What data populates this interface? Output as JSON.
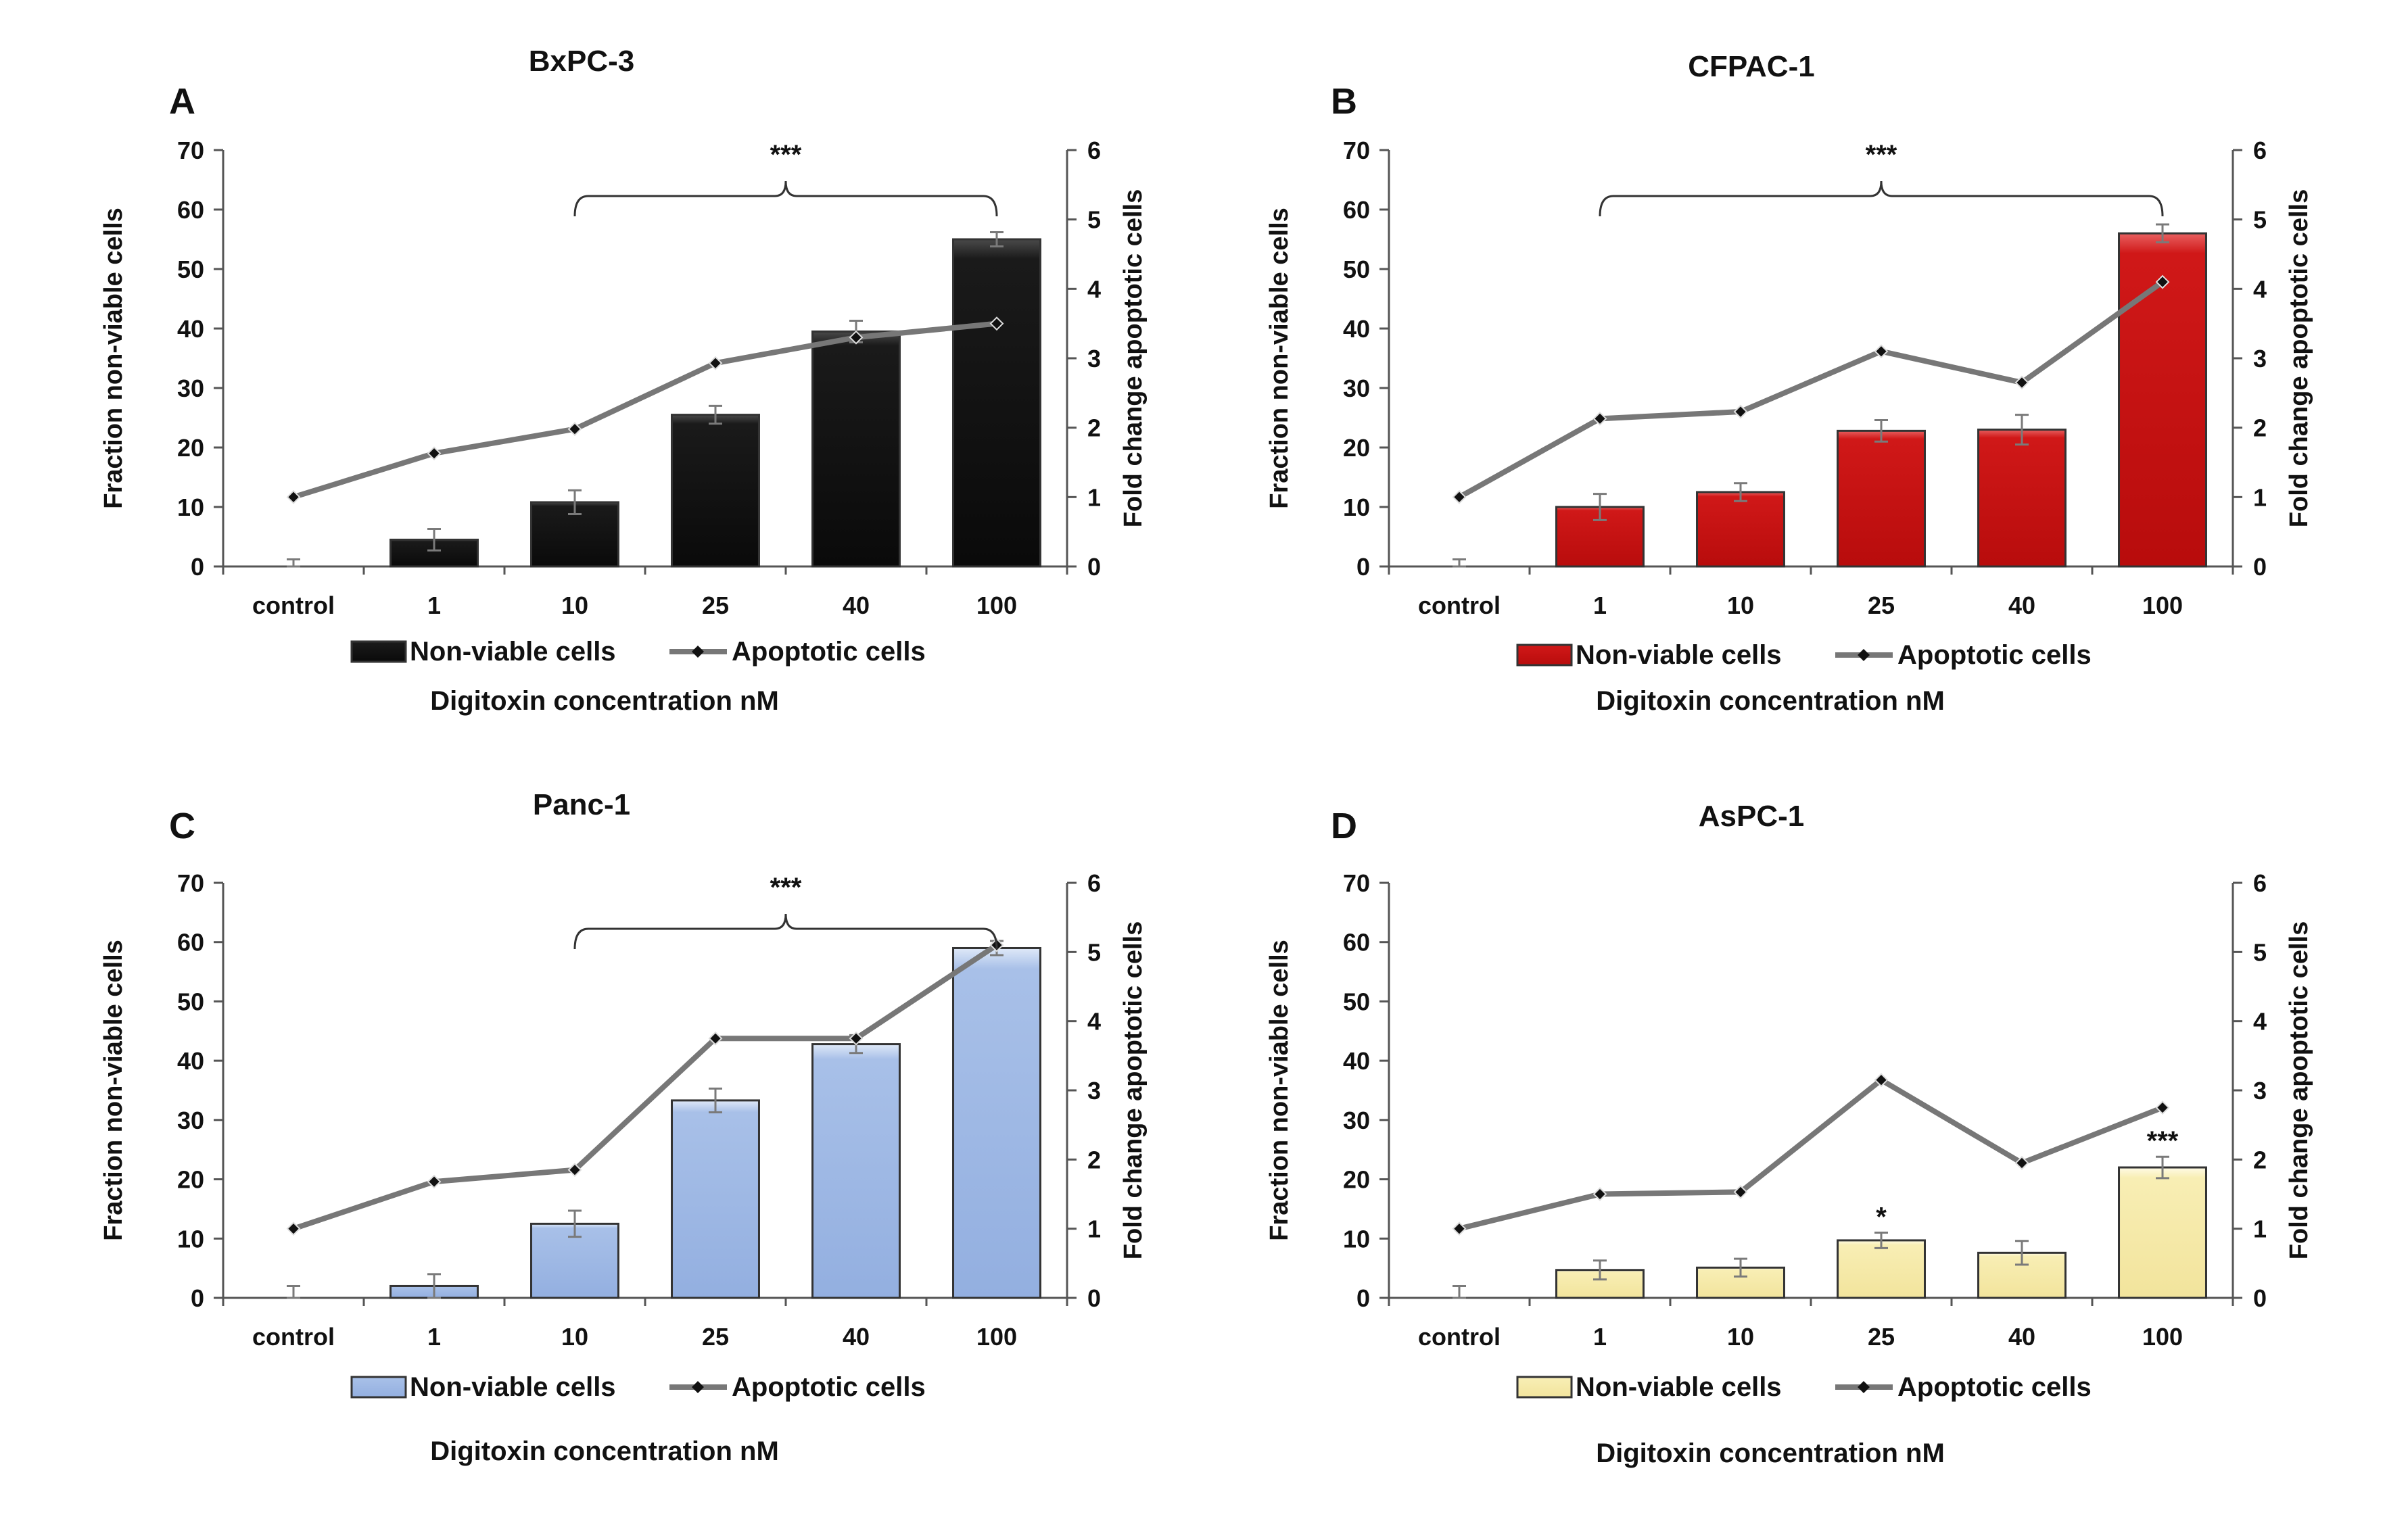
{
  "figure": {
    "legend_bar_label": "Non-viable cells",
    "legend_line_label": "Apoptotic cells",
    "x_title": "Digitoxin concentration nM",
    "y_left_title": "Fraction non-viable cells",
    "y_right_title": "Fold change apoptotic cells"
  },
  "chart_data": [
    {
      "type": "bar",
      "panel": "A",
      "title": "BxPC-3",
      "categories": [
        "control",
        "1",
        "10",
        "25",
        "40",
        "100"
      ],
      "ylim": [
        0,
        70
      ],
      "yticks": [
        0,
        10,
        20,
        30,
        40,
        50,
        60,
        70
      ],
      "y2lim": [
        0,
        6
      ],
      "y2ticks": [
        0,
        1,
        2,
        3,
        4,
        5,
        6
      ],
      "xlabel": "Digitoxin concentration nM",
      "ylabel": "Fraction non-viable cells",
      "y2label": "Fold change apoptotic cells",
      "bar_color": "#111111",
      "series": [
        {
          "name": "Non-viable cells",
          "axis": "left",
          "values": [
            0,
            4.5,
            10.8,
            25.5,
            39.5,
            55
          ],
          "errors": [
            1.2,
            1.8,
            2.0,
            1.5,
            1.8,
            1.2
          ]
        },
        {
          "name": "Apoptotic cells",
          "axis": "right",
          "values": [
            1.0,
            1.63,
            1.98,
            2.93,
            3.3,
            3.5
          ]
        }
      ],
      "annotations": [
        {
          "text": "***",
          "type": "bracket",
          "from": "10",
          "to": "100"
        }
      ]
    },
    {
      "type": "bar",
      "panel": "B",
      "title": "CFPAC-1",
      "categories": [
        "control",
        "1",
        "10",
        "25",
        "40",
        "100"
      ],
      "ylim": [
        0,
        70
      ],
      "yticks": [
        0,
        10,
        20,
        30,
        40,
        50,
        60,
        70
      ],
      "y2lim": [
        0,
        6
      ],
      "y2ticks": [
        0,
        1,
        2,
        3,
        4,
        5,
        6
      ],
      "xlabel": "Digitoxin concentration nM",
      "ylabel": "Fraction non-viable cells",
      "y2label": "Fold change apoptotic cells",
      "bar_color": "#c81414",
      "series": [
        {
          "name": "Non-viable cells",
          "axis": "left",
          "values": [
            0,
            10,
            12.5,
            22.8,
            23,
            56
          ],
          "errors": [
            1.2,
            2.2,
            1.5,
            1.8,
            2.5,
            1.5
          ]
        },
        {
          "name": "Apoptotic cells",
          "axis": "right",
          "values": [
            1.0,
            2.13,
            2.23,
            3.1,
            2.65,
            4.1
          ]
        }
      ],
      "annotations": [
        {
          "text": "***",
          "type": "bracket",
          "from": "1",
          "to": "100"
        }
      ]
    },
    {
      "type": "bar",
      "panel": "C",
      "title": "Panc-1",
      "categories": [
        "control",
        "1",
        "10",
        "25",
        "40",
        "100"
      ],
      "ylim": [
        0,
        70
      ],
      "yticks": [
        0,
        10,
        20,
        30,
        40,
        50,
        60,
        70
      ],
      "y2lim": [
        0,
        6
      ],
      "y2ticks": [
        0,
        1,
        2,
        3,
        4,
        5,
        6
      ],
      "xlabel": "Digitoxin concentration nM",
      "ylabel": "Fraction non-viable cells",
      "y2label": "Fold change apoptotic cells",
      "bar_color": "#9cb6e2",
      "series": [
        {
          "name": "Non-viable cells",
          "axis": "left",
          "values": [
            0,
            2,
            12.5,
            33.3,
            42.8,
            59
          ],
          "errors": [
            2.0,
            2.0,
            2.2,
            2.0,
            1.5,
            1.2
          ]
        },
        {
          "name": "Apoptotic cells",
          "axis": "right",
          "values": [
            1.0,
            1.68,
            1.85,
            3.75,
            3.75,
            5.1
          ]
        }
      ],
      "annotations": [
        {
          "text": "***",
          "type": "bracket",
          "from": "10",
          "to": "100"
        }
      ]
    },
    {
      "type": "bar",
      "panel": "D",
      "title": "AsPC-1",
      "categories": [
        "control",
        "1",
        "10",
        "25",
        "40",
        "100"
      ],
      "ylim": [
        0,
        70
      ],
      "yticks": [
        0,
        10,
        20,
        30,
        40,
        50,
        60,
        70
      ],
      "y2lim": [
        0,
        6
      ],
      "y2ticks": [
        0,
        1,
        2,
        3,
        4,
        5,
        6
      ],
      "xlabel": "Digitoxin concentration nM",
      "ylabel": "Fraction non-viable cells",
      "y2label": "Fold change apoptotic cells",
      "bar_color": "#f7ebaa",
      "series": [
        {
          "name": "Non-viable cells",
          "axis": "left",
          "values": [
            0,
            4.7,
            5.1,
            9.7,
            7.6,
            22
          ],
          "errors": [
            2.0,
            1.6,
            1.5,
            1.3,
            2.0,
            1.8
          ]
        },
        {
          "name": "Apoptotic cells",
          "axis": "right",
          "values": [
            1.0,
            1.5,
            1.53,
            3.15,
            1.95,
            2.75
          ]
        }
      ],
      "annotations": [
        {
          "text": "*",
          "type": "above-bar",
          "category": "25"
        },
        {
          "text": "***",
          "type": "above-bar",
          "category": "100"
        }
      ]
    }
  ]
}
